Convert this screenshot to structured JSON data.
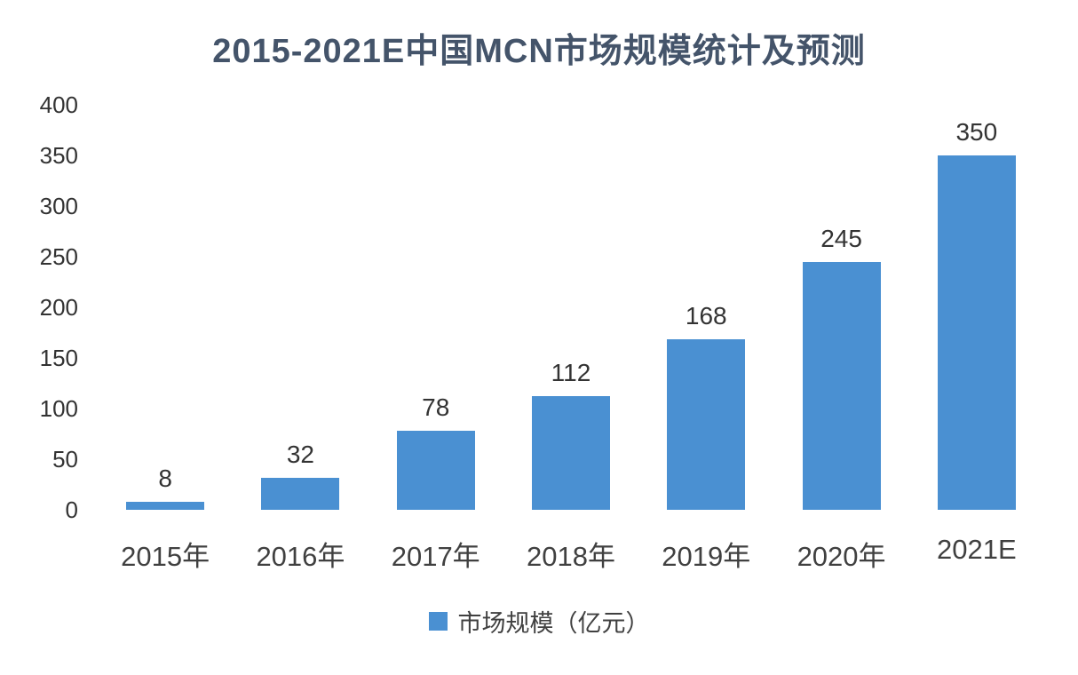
{
  "chart_data": {
    "type": "bar",
    "title": "2015-2021E中国MCN市场规模统计及预测",
    "categories": [
      "2015年",
      "2016年",
      "2017年",
      "2018年",
      "2019年",
      "2020年",
      "2021E"
    ],
    "values": [
      8,
      32,
      78,
      112,
      168,
      245,
      350
    ],
    "series_name": "市场规模（亿元）",
    "xlabel": "",
    "ylabel": "",
    "ylim": [
      0,
      400
    ],
    "y_ticks": [
      0,
      50,
      100,
      150,
      200,
      250,
      300,
      350,
      400
    ],
    "grid": false,
    "legend_position": "bottom",
    "colors": {
      "bar": "#4a90d2",
      "title": "#44546a",
      "text": "#404040"
    }
  }
}
